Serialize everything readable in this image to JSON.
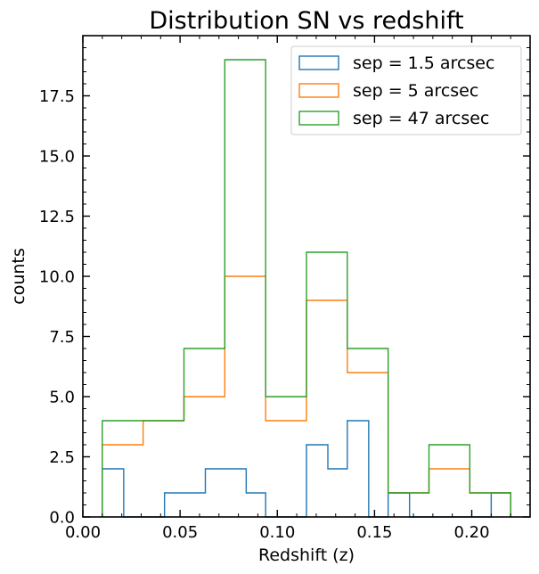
{
  "chart_data": {
    "type": "histogram",
    "title": "Distribution SN vs redshift",
    "xlabel": "Redshift (z)",
    "ylabel": "counts",
    "xlim": [
      0.0,
      0.23
    ],
    "ylim": [
      0,
      20
    ],
    "xticks": [
      0.0,
      0.05,
      0.1,
      0.15,
      0.2
    ],
    "xtick_labels": [
      "0.00",
      "0.05",
      "0.10",
      "0.15",
      "0.20"
    ],
    "yticks": [
      0,
      2.5,
      5,
      7.5,
      10,
      12.5,
      15,
      17.5
    ],
    "ytick_labels": [
      "0.0",
      "2.5",
      "5.0",
      "7.5",
      "10.0",
      "12.5",
      "15.0",
      "17.5"
    ],
    "histtype": "step",
    "legend_position": "top-right",
    "series": [
      {
        "name": "sep = 1.5 arcsec",
        "color": "#1f77b4",
        "bin_edges": [
          0.01,
          0.021,
          0.031,
          0.042,
          0.052,
          0.063,
          0.073,
          0.084,
          0.094,
          0.105,
          0.115,
          0.126,
          0.136,
          0.147,
          0.157,
          0.168,
          0.178,
          0.189,
          0.199,
          0.21,
          0.22
        ],
        "counts": [
          2,
          0,
          0,
          1,
          1,
          2,
          2,
          1,
          0,
          0,
          3,
          2,
          4,
          0,
          1,
          0,
          0,
          0,
          0,
          1
        ]
      },
      {
        "name": "sep = 5 arcsec",
        "color": "#ff7f0e",
        "bin_edges": [
          0.01,
          0.031,
          0.052,
          0.073,
          0.094,
          0.115,
          0.136,
          0.157,
          0.178,
          0.199,
          0.22
        ],
        "counts": [
          3,
          4,
          5,
          10,
          4,
          9,
          6,
          1,
          2,
          1
        ]
      },
      {
        "name": "sep = 47 arcsec",
        "color": "#2ca02c",
        "bin_edges": [
          0.01,
          0.031,
          0.052,
          0.073,
          0.094,
          0.115,
          0.136,
          0.157,
          0.178,
          0.199,
          0.22
        ],
        "counts": [
          4,
          4,
          7,
          19,
          5,
          11,
          7,
          1,
          3,
          1
        ]
      }
    ]
  }
}
